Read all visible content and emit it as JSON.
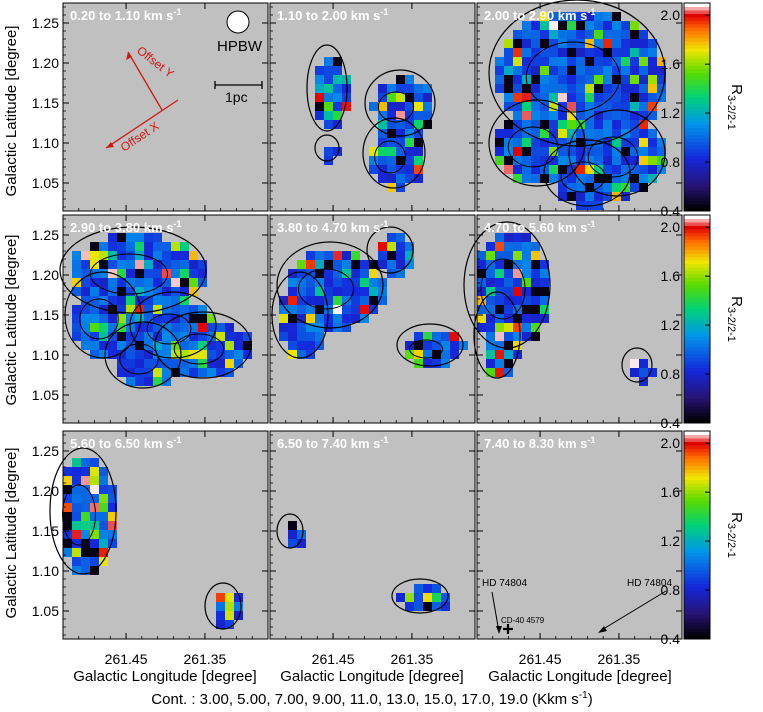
{
  "chart_data": {
    "type": "heatmap",
    "layout": "3x3 channel maps",
    "panels": [
      {
        "id": "p1",
        "prefix": "0.20 to 1.10 km s",
        "sup": "-1"
      },
      {
        "id": "p2",
        "prefix": "1.10 to 2.00 km s",
        "sup": "-1"
      },
      {
        "id": "p3",
        "prefix": "2.00 to 2.90 km s",
        "sup": "-1"
      },
      {
        "id": "p4",
        "prefix": "2.90 to 3.80 km s",
        "sup": "-1"
      },
      {
        "id": "p5",
        "prefix": "3.80 to 4.70 km s",
        "sup": "-1"
      },
      {
        "id": "p6",
        "prefix": "4.70 to 5.60 km s",
        "sup": "-1"
      },
      {
        "id": "p7",
        "prefix": "5.60 to 6.50 km s",
        "sup": "-1"
      },
      {
        "id": "p8",
        "prefix": "6.50 to 7.40 km s",
        "sup": "-1"
      },
      {
        "id": "p9",
        "prefix": "7.40 to 8.30 km s",
        "sup": "-1"
      }
    ],
    "xlabel": "Galactic Longitude [degree]",
    "ylabel": "Galactic Latitude [degree]",
    "x_ticks": [
      "261.45",
      "261.35"
    ],
    "x_tick_values": [
      261.45,
      261.35
    ],
    "xlim": [
      261.53,
      261.27
    ],
    "y_ticks": [
      "1.05",
      "1.10",
      "1.15",
      "1.20",
      "1.25"
    ],
    "y_tick_values": [
      1.05,
      1.1,
      1.15,
      1.2,
      1.25
    ],
    "ylim": [
      1.015,
      1.275
    ],
    "colorbar": {
      "label": "R",
      "label_sub": "3-2/2-1",
      "ticks": [
        "0.4",
        "0.8",
        "1.2",
        "1.6",
        "2.0"
      ],
      "tick_values": [
        0.4,
        0.8,
        1.2,
        1.6,
        2.0
      ],
      "range": [
        0.4,
        2.1
      ]
    },
    "contours_caption": "Cont. : 3.00, 5.00, 7.00, 9.00, 11.0, 13.0, 15.0, 17.0, 19.0 (Kkm s",
    "contours_caption_sup": "-1",
    "contours_caption_end": ")",
    "contour_levels": [
      3.0,
      5.0,
      7.0,
      9.0,
      11.0,
      13.0,
      15.0,
      17.0,
      19.0
    ],
    "annotations": {
      "beam_label": "HPBW",
      "scalebar_label": "1pc",
      "offset_x_label": "Offset X",
      "offset_y_label": "Offset Y",
      "star1": "HD 74804",
      "star2": "HD 74804",
      "star3": "CD-40 4579"
    },
    "background_color": "#c0c0c0"
  }
}
